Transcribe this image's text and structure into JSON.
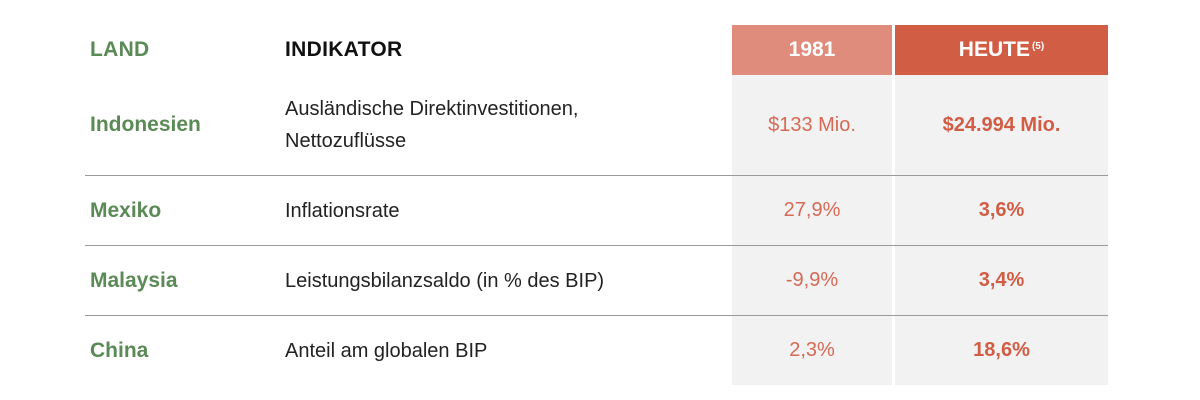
{
  "header": {
    "land": "LAND",
    "indikator": "INDIKATOR",
    "year_1981": "1981",
    "heute": "HEUTE",
    "heute_footnote": "(5)"
  },
  "rows": [
    {
      "land": "Indonesien",
      "indikator_line1": "Ausländische Direktinvestitionen,",
      "indikator_line2": "Nettozuflüsse",
      "value_1981": "$133 Mio.",
      "value_heute": "$24.994 Mio."
    },
    {
      "land": "Mexiko",
      "indikator_line1": "Inflationsrate",
      "indikator_line2": "",
      "value_1981": "27,9%",
      "value_heute": "3,6%"
    },
    {
      "land": "Malaysia",
      "indikator_line1": "Leistungsbilanzsaldo (in % des BIP)",
      "indikator_line2": "",
      "value_1981": "-9,9%",
      "value_heute": "3,4%"
    },
    {
      "land": "China",
      "indikator_line1": "Anteil am globalen BIP",
      "indikator_line2": "",
      "value_1981": "2,3%",
      "value_heute": "18,6%"
    }
  ],
  "colors": {
    "land_green": "#5a8a55",
    "header_1981_bg": "#e08c7c",
    "header_heute_bg": "#d15d45",
    "value_red": "#d15d45",
    "column_shade": "#f2f2f2"
  }
}
